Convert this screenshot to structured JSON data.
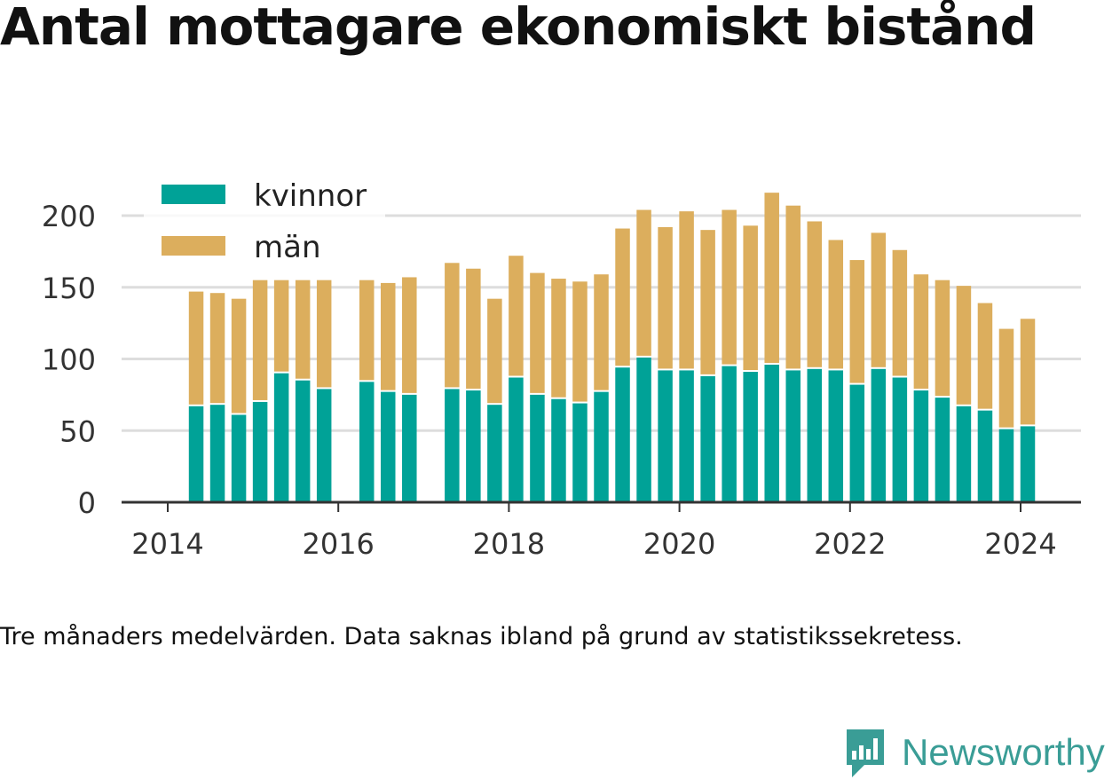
{
  "title": "Antal mottagare ekonomiskt bistånd",
  "caption": "Tre månaders medelvärden. Data saknas ibland på grund av statistikssekretess.",
  "logo": {
    "text": "Newsworthy",
    "icon": "chart-speech-bubble-icon",
    "color": "#3a9d96"
  },
  "chart_data": {
    "type": "bar",
    "stacked": true,
    "x": [
      "2014-05",
      "2014-08",
      "2014-11",
      "2015-02",
      "2015-05",
      "2015-08",
      "2015-11",
      "2016-05",
      "2016-08",
      "2016-11",
      "2017-05",
      "2017-08",
      "2017-11",
      "2018-02",
      "2018-05",
      "2018-08",
      "2018-11",
      "2019-02",
      "2019-05",
      "2019-08",
      "2019-11",
      "2020-02",
      "2020-05",
      "2020-08",
      "2020-11",
      "2021-02",
      "2021-05",
      "2021-08",
      "2021-11",
      "2022-02",
      "2022-05",
      "2022-08",
      "2022-11",
      "2023-02",
      "2023-05",
      "2023-08",
      "2023-11",
      "2024-02"
    ],
    "series": [
      {
        "name": "kvinnor",
        "color": "#00a297",
        "values": [
          67,
          68,
          61,
          70,
          90,
          85,
          79,
          84,
          77,
          75,
          79,
          78,
          68,
          87,
          75,
          72,
          69,
          77,
          94,
          101,
          92,
          92,
          88,
          95,
          91,
          96,
          92,
          93,
          92,
          82,
          93,
          87,
          78,
          73,
          67,
          64,
          51,
          53
        ]
      },
      {
        "name": "män",
        "color": "#dcae5d",
        "values": [
          80,
          78,
          81,
          85,
          65,
          70,
          76,
          71,
          76,
          82,
          88,
          85,
          74,
          85,
          85,
          84,
          85,
          82,
          97,
          103,
          100,
          111,
          102,
          109,
          102,
          120,
          115,
          103,
          91,
          87,
          95,
          89,
          81,
          82,
          84,
          75,
          70,
          75
        ]
      }
    ],
    "xticks": [
      "2014",
      "2016",
      "2018",
      "2020",
      "2022",
      "2024"
    ],
    "xlim": [
      "2013-08",
      "2024-11"
    ],
    "yticks": [
      0,
      50,
      100,
      150,
      200
    ],
    "ylim": [
      0,
      200
    ],
    "grid": true,
    "legend": "top-left",
    "colors": {
      "axis": "#333333",
      "grid": "#dddddd",
      "tick_text": "#333333"
    }
  }
}
